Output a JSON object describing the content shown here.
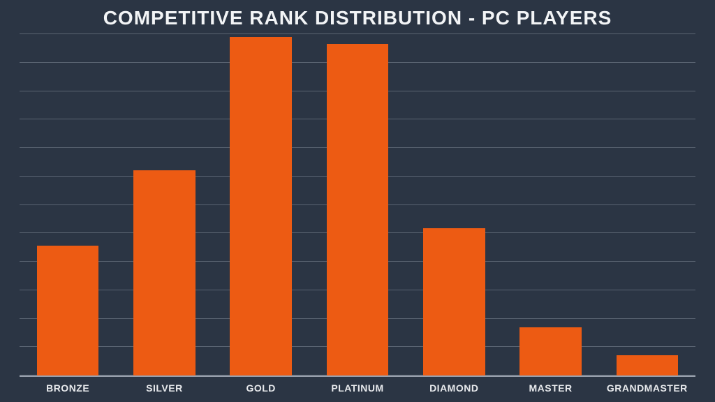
{
  "chart": {
    "type": "bar",
    "title": "COMPETITIVE RANK DISTRIBUTION - PC PLAYERS",
    "title_fontsize": 28,
    "title_color": "#f2f4f6",
    "background_color": "#2b3544",
    "grid_color": "#5a6472",
    "grid_line_count": 13,
    "axis_line_color": "#98a0ad",
    "bar_color": "#ed5b13",
    "bar_width_pct": 64,
    "label_color": "#e8eaed",
    "label_fontsize": 14,
    "categories": [
      "BRONZE",
      "SILVER",
      "GOLD",
      "PLATINUM",
      "DIAMOND",
      "MASTER",
      "GRANDMASTER"
    ],
    "values": [
      38,
      60,
      99,
      97,
      43,
      14,
      6
    ],
    "ylim": [
      0,
      100
    ]
  }
}
